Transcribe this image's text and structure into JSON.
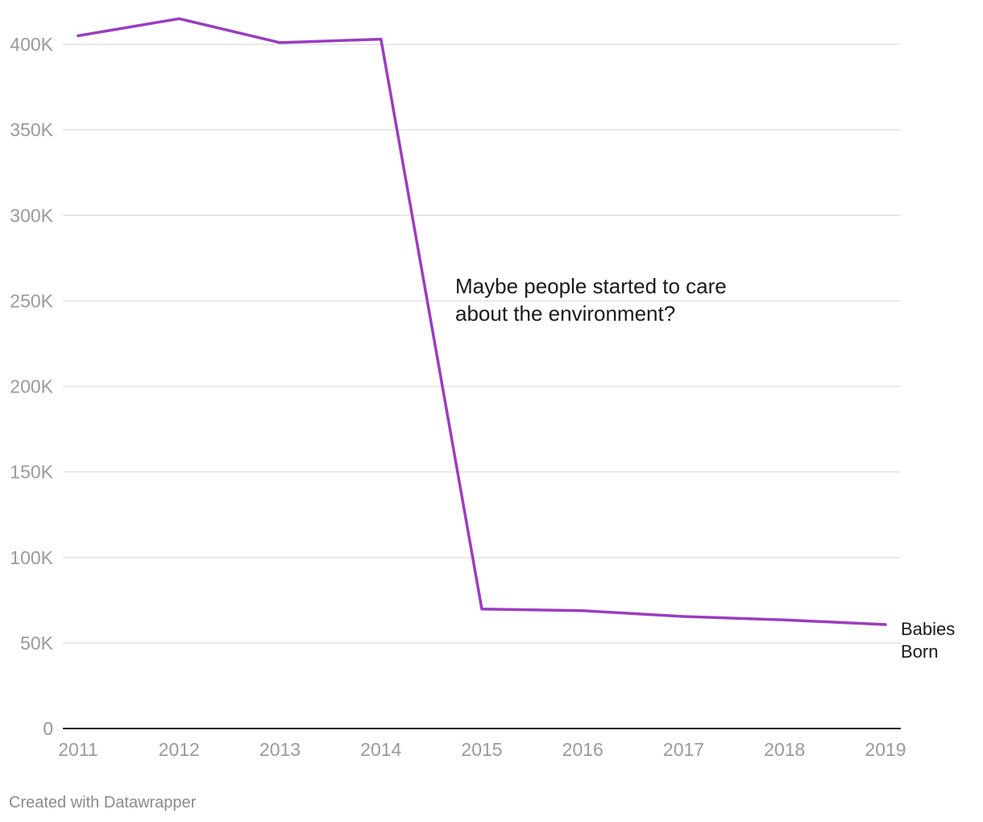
{
  "chart_data": {
    "type": "line",
    "x": [
      "2011",
      "2012",
      "2013",
      "2014",
      "2015",
      "2016",
      "2017",
      "2018",
      "2019"
    ],
    "series": [
      {
        "name": "Babies Born",
        "color": "#9b3cbf",
        "values": [
          405000,
          415000,
          401000,
          403000,
          69800,
          68900,
          65500,
          63500,
          60800
        ]
      }
    ],
    "yticks": [
      0,
      50000,
      100000,
      150000,
      200000,
      250000,
      300000,
      350000,
      400000
    ],
    "ytick_labels": [
      "0",
      "50K",
      "100K",
      "150K",
      "200K",
      "250K",
      "300K",
      "350K",
      "400K"
    ],
    "ylim": [
      0,
      400000
    ],
    "grid": true,
    "annotations": [
      {
        "lines": [
          "Maybe people started to care",
          "about the environment?"
        ]
      }
    ],
    "series_label_lines": [
      "Babies",
      "Born"
    ],
    "title": "",
    "xlabel": "",
    "ylabel": ""
  },
  "footer": {
    "credit": "Created with Datawrapper"
  }
}
